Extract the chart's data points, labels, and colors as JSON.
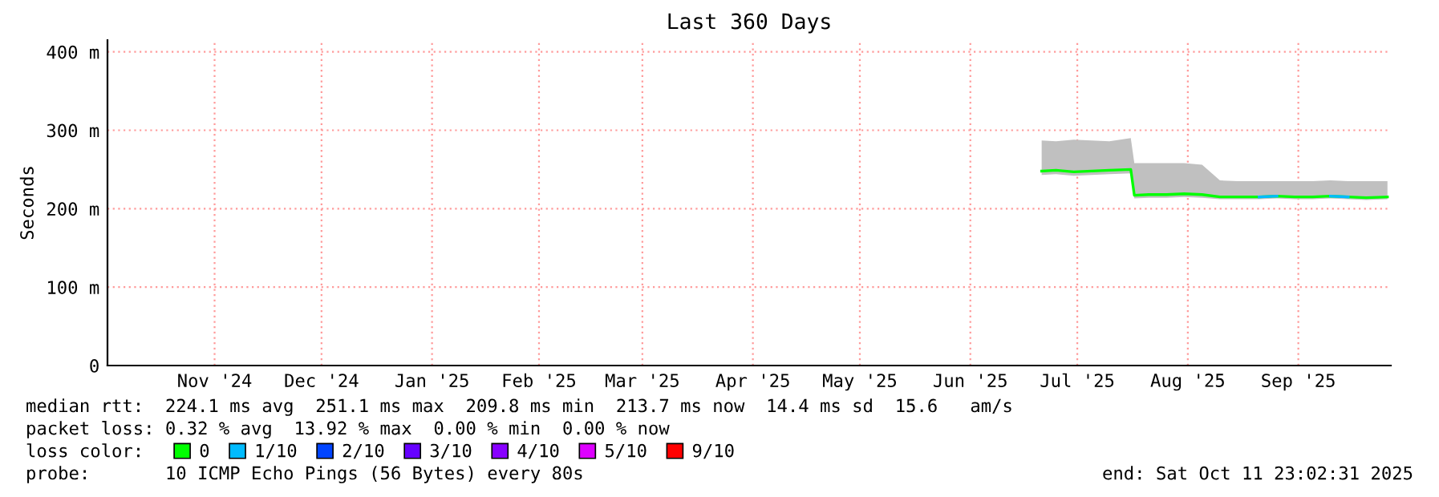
{
  "chart_data": {
    "type": "line",
    "title": "Last 360 Days",
    "ylabel": "Seconds",
    "x": [
      "2025-07-06",
      "2025-07-10",
      "2025-07-15",
      "2025-07-20",
      "2025-07-25",
      "2025-07-31",
      "2025-08-01",
      "2025-08-05",
      "2025-08-10",
      "2025-08-15",
      "2025-08-20",
      "2025-08-25",
      "2025-08-30",
      "2025-09-05",
      "2025-09-10",
      "2025-09-15",
      "2025-09-20",
      "2025-09-25",
      "2025-09-30",
      "2025-10-05",
      "2025-10-11"
    ],
    "series": [
      {
        "name": "0",
        "color": "#00ff00",
        "values": [
          248,
          249,
          247,
          248,
          249,
          250,
          217,
          218,
          218,
          219,
          218,
          215,
          215,
          215,
          216,
          215,
          215,
          216,
          215,
          214,
          215
        ],
        "lower": [
          243,
          244,
          242,
          243,
          244,
          245,
          213,
          214,
          214,
          215,
          214,
          212,
          212,
          212,
          213,
          212,
          212,
          213,
          212,
          211,
          212
        ],
        "upper": [
          287,
          286,
          288,
          287,
          286,
          290,
          258,
          258,
          258,
          258,
          256,
          236,
          235,
          235,
          235,
          235,
          235,
          236,
          235,
          235,
          235
        ]
      },
      {
        "name": "1/10",
        "color": "#00bbff",
        "values": [
          null,
          null,
          null,
          null,
          null,
          null,
          null,
          null,
          null,
          null,
          null,
          null,
          null,
          215,
          216,
          null,
          null,
          216,
          215,
          null,
          null
        ]
      },
      {
        "name": "2/10",
        "color": "#0044ff",
        "values": [
          null,
          null,
          null,
          null,
          null,
          null,
          null,
          null,
          null,
          null,
          null,
          null,
          null,
          null,
          null,
          null,
          null,
          null,
          null,
          null,
          null
        ]
      },
      {
        "name": "3/10",
        "color": "#6600ff",
        "values": [
          null,
          null,
          null,
          null,
          null,
          null,
          null,
          null,
          null,
          null,
          null,
          null,
          null,
          null,
          null,
          null,
          null,
          null,
          null,
          null,
          null
        ]
      },
      {
        "name": "4/10",
        "color": "#8800ff",
        "values": [
          null,
          null,
          null,
          null,
          null,
          null,
          null,
          null,
          null,
          null,
          null,
          null,
          null,
          null,
          null,
          null,
          null,
          null,
          null,
          null,
          null
        ]
      },
      {
        "name": "5/10",
        "color": "#dd00ff",
        "values": [
          null,
          null,
          null,
          null,
          null,
          null,
          null,
          null,
          null,
          null,
          null,
          null,
          null,
          null,
          null,
          null,
          null,
          null,
          null,
          null,
          null
        ]
      },
      {
        "name": "9/10",
        "color": "#ff0000",
        "values": [
          null,
          null,
          null,
          null,
          null,
          null,
          null,
          null,
          null,
          null,
          null,
          null,
          null,
          null,
          null,
          null,
          null,
          null,
          null,
          null,
          null
        ]
      }
    ],
    "legend_title": "loss color:",
    "legend": "bottom",
    "xlim": [
      "2024-10-16T23:00",
      "2025-10-11T23:00"
    ],
    "xticks": [
      {
        "value": "2024-11-16",
        "label": "Nov '24"
      },
      {
        "value": "2024-12-16",
        "label": "Dec '24"
      },
      {
        "value": "2025-01-16",
        "label": "Jan '25"
      },
      {
        "value": "2025-02-15",
        "label": "Feb '25"
      },
      {
        "value": "2025-03-16",
        "label": "Mar '25"
      },
      {
        "value": "2025-04-16",
        "label": "Apr '25"
      },
      {
        "value": "2025-05-16",
        "label": "May '25"
      },
      {
        "value": "2025-06-16",
        "label": "Jun '25"
      },
      {
        "value": "2025-07-16",
        "label": "Jul '25"
      },
      {
        "value": "2025-08-16",
        "label": "Aug '25"
      },
      {
        "value": "2025-09-16",
        "label": "Sep '25"
      }
    ],
    "ylim": [
      0,
      415
    ],
    "yticks": [
      0,
      {
        "value": 100,
        "label": "100 m"
      },
      {
        "value": 200,
        "label": "200 m"
      },
      {
        "value": 300,
        "label": "300 m"
      },
      {
        "value": 400,
        "label": "400 m"
      }
    ],
    "grid": true,
    "annotations": [
      "median rtt:  224.1 ms avg  251.1 ms max  209.8 ms min  213.7 ms now  14.4 ms sd  15.6   am/s",
      "packet loss: 0.32 % avg  13.92 % max  0.00 % min  0.00 % now",
      "probe:       10 ICMP Echo Pings (56 Bytes) every 80s",
      "end: Sat Oct 11 23:02:31 2025"
    ]
  }
}
